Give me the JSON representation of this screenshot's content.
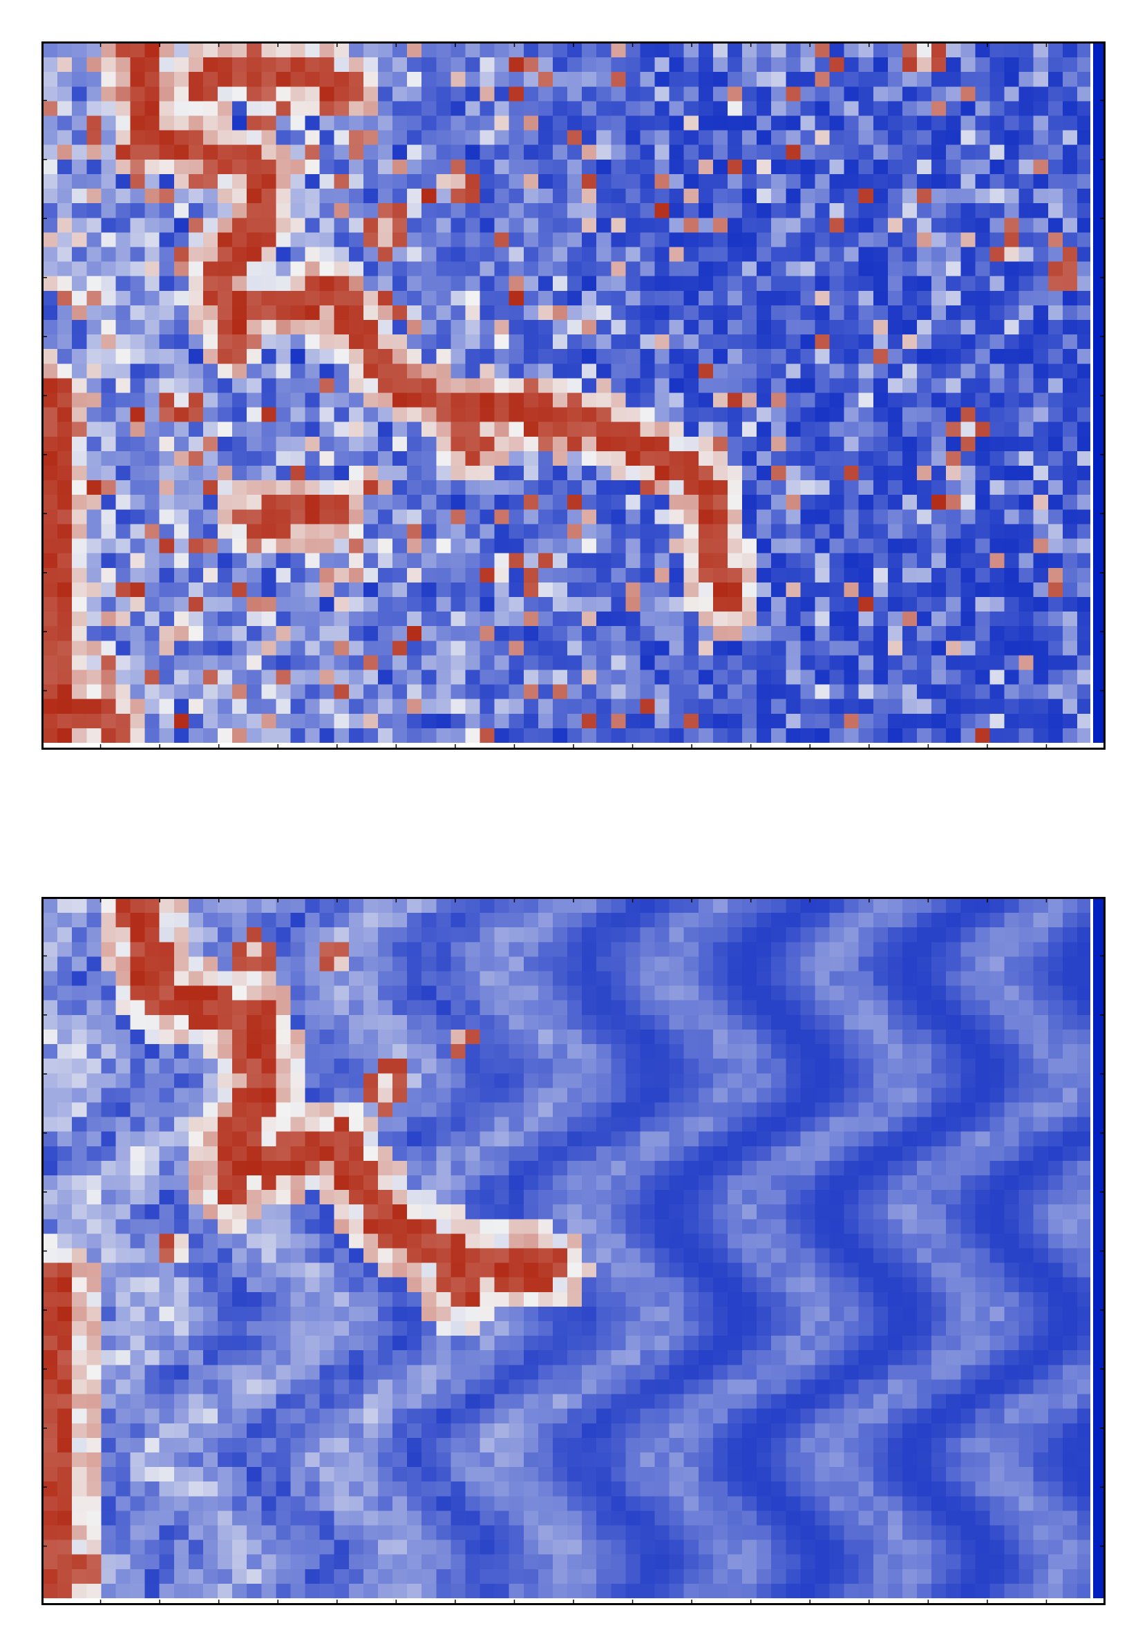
{
  "colors": {
    "low": "#0020c0",
    "mid": "#f2f2f2",
    "high": "#b22b16",
    "frame": "#000000",
    "background": "#ffffff"
  },
  "chart_data": [
    {
      "type": "heatmap",
      "title": "",
      "xlabel": "",
      "ylabel": "",
      "x_tick_count": 18,
      "y_tick_count": 12,
      "grid_cols": 72,
      "grid_rows": 48,
      "color_scale": [
        "#0020c0",
        "#f2f2f2",
        "#b22b16"
      ],
      "value_range": [
        0,
        1
      ],
      "texture": "noisy",
      "features": {
        "ribbons": [
          [
            [
              0.09,
              0.01
            ],
            [
              0.1,
              0.14
            ],
            [
              0.2,
              0.17
            ],
            [
              0.21,
              0.26
            ],
            [
              0.17,
              0.32
            ],
            [
              0.18,
              0.43
            ]
          ],
          [
            [
              0.2,
              0.38
            ],
            [
              0.28,
              0.36
            ],
            [
              0.33,
              0.48
            ],
            [
              0.39,
              0.52
            ],
            [
              0.41,
              0.58
            ]
          ],
          [
            [
              0.41,
              0.52
            ],
            [
              0.52,
              0.54
            ],
            [
              0.63,
              0.62
            ],
            [
              0.65,
              0.8
            ]
          ],
          [
            [
              0.15,
              0.06
            ],
            [
              0.2,
              0.03
            ],
            [
              0.29,
              0.06
            ]
          ],
          [
            [
              0.2,
              0.68
            ],
            [
              0.28,
              0.67
            ]
          ],
          [
            [
              0.01,
              0.5
            ],
            [
              0.01,
              0.98
            ]
          ],
          [
            [
              0.01,
              0.96
            ],
            [
              0.07,
              0.97
            ]
          ]
        ],
        "blobs": [
          [
            0.21,
            0.09,
            0.03
          ],
          [
            0.28,
            0.08,
            0.025
          ],
          [
            0.33,
            0.27,
            0.035
          ],
          [
            0.13,
            0.52,
            0.03
          ],
          [
            0.4,
            0.2,
            0.025
          ],
          [
            0.84,
            0.02,
            0.03
          ],
          [
            0.88,
            0.55,
            0.025
          ],
          [
            0.92,
            0.3,
            0.02
          ],
          [
            0.97,
            0.33,
            0.02
          ],
          [
            0.44,
            0.74,
            0.02
          ]
        ]
      }
    },
    {
      "type": "heatmap",
      "title": "",
      "xlabel": "",
      "ylabel": "",
      "x_tick_count": 18,
      "y_tick_count": 12,
      "grid_cols": 72,
      "grid_rows": 48,
      "color_scale": [
        "#0020c0",
        "#f2f2f2",
        "#b22b16"
      ],
      "value_range": [
        0,
        1
      ],
      "texture": "smooth",
      "features": {
        "ribbons": [
          [
            [
              0.09,
              0.01
            ],
            [
              0.11,
              0.14
            ],
            [
              0.2,
              0.17
            ],
            [
              0.21,
              0.28
            ],
            [
              0.18,
              0.35
            ],
            [
              0.18,
              0.41
            ]
          ],
          [
            [
              0.21,
              0.38
            ],
            [
              0.28,
              0.35
            ],
            [
              0.33,
              0.47
            ],
            [
              0.38,
              0.5
            ],
            [
              0.4,
              0.56
            ]
          ],
          [
            [
              0.4,
              0.52
            ],
            [
              0.48,
              0.53
            ]
          ],
          [
            [
              0.01,
              0.55
            ],
            [
              0.01,
              0.98
            ]
          ]
        ],
        "blobs": [
          [
            0.2,
            0.08,
            0.03
          ],
          [
            0.28,
            0.09,
            0.025
          ],
          [
            0.33,
            0.27,
            0.035
          ],
          [
            0.13,
            0.5,
            0.025
          ],
          [
            0.04,
            0.96,
            0.02
          ],
          [
            0.4,
            0.2,
            0.02
          ]
        ]
      }
    }
  ]
}
